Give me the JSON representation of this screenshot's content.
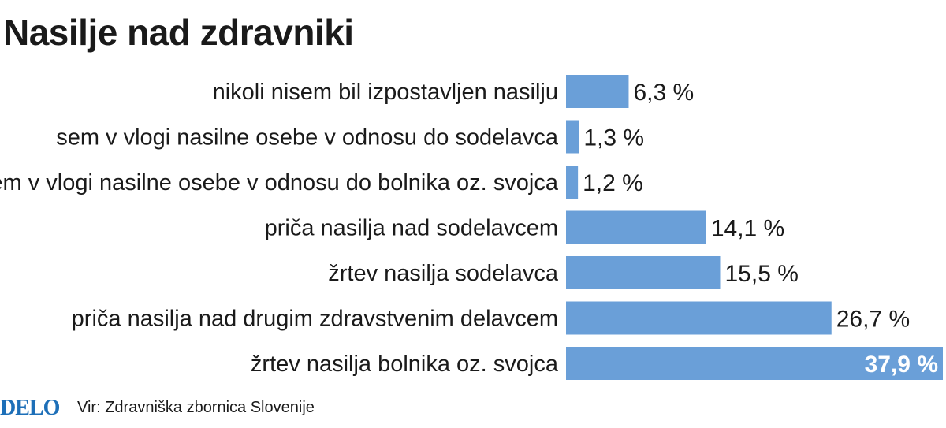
{
  "title": "Nasilje nad zdravniki",
  "brand": {
    "text": "DELO",
    "color": "#1d6fb8"
  },
  "source": "Vir: Zdravniška zbornica Slovenije",
  "colors": {
    "bar": "#6a9fd8",
    "text": "#1a1a1a",
    "inside_label": "#ffffff"
  },
  "chart_data": {
    "type": "bar",
    "orientation": "horizontal",
    "title": "Nasilje nad zdravniki",
    "xlabel": "",
    "ylabel": "",
    "grid": false,
    "legend": "none",
    "unit": "%",
    "categories": [
      "nikoli nisem bil izpostavljen nasilju",
      "sem v vlogi nasilne osebe v odnosu do sodelavca",
      "sem v vlogi nasilne osebe v odnosu do bolnika oz. svojca",
      "priča nasilja nad sodelavcem",
      "žrtev nasilja sodelavca",
      "priča nasilja nad drugim zdravstvenim delavcem",
      "žrtev nasilja bolnika oz. svojca"
    ],
    "values": [
      6.3,
      1.3,
      1.2,
      14.1,
      15.5,
      26.7,
      37.9
    ],
    "value_labels": [
      "6,3 %",
      "1,3 %",
      "1,2 %",
      "14,1 %",
      "15,5 %",
      "26,7 %",
      "37,9 %"
    ],
    "xlim": [
      0,
      37.9
    ]
  }
}
